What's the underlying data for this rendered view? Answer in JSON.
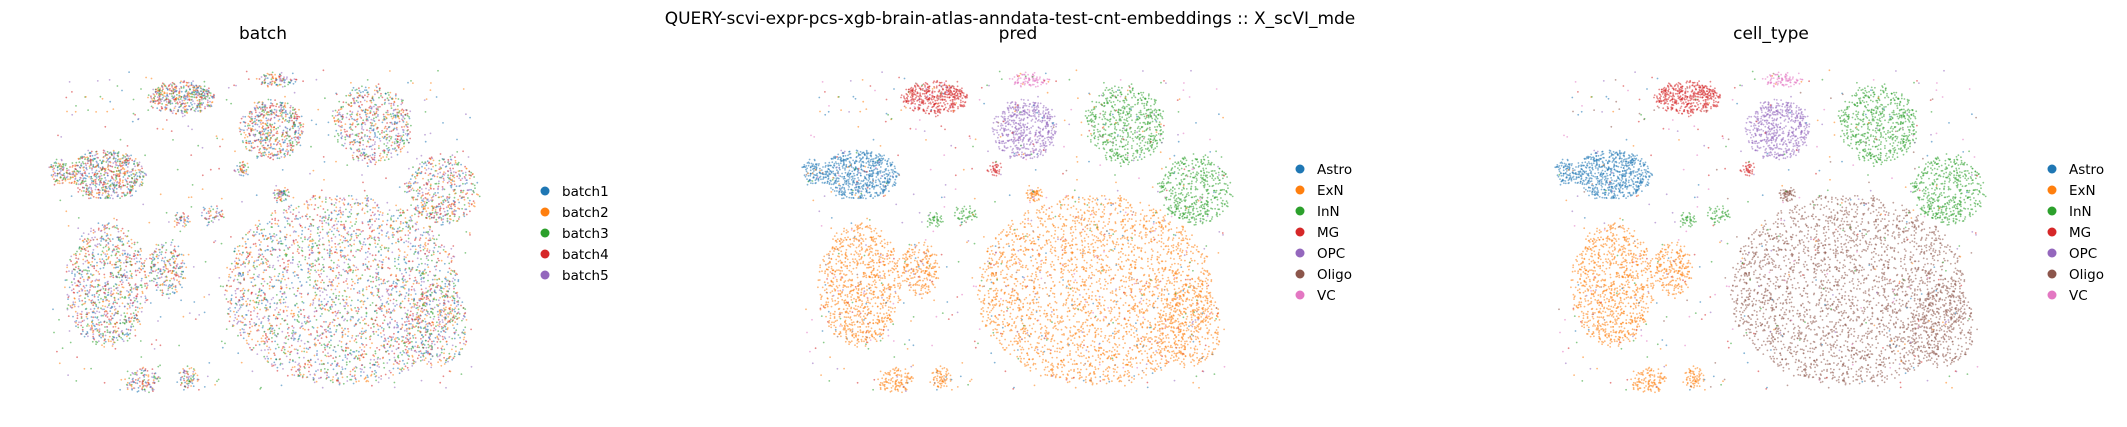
{
  "suptitle": "QUERY-scvi-expr-pcs-xgb-brain-atlas-anndata-test-cnt-embeddings :: X_scVI_mde",
  "chart_data": [
    {
      "type": "scatter",
      "title": "batch",
      "legend_position": "right",
      "grid": false,
      "axes_visible": false,
      "series": [
        {
          "name": "batch1",
          "color": "#1f77b4"
        },
        {
          "name": "batch2",
          "color": "#ff7f0e"
        },
        {
          "name": "batch3",
          "color": "#2ca02c"
        },
        {
          "name": "batch4",
          "color": "#d62728"
        },
        {
          "name": "batch5",
          "color": "#9467bd"
        }
      ]
    },
    {
      "type": "scatter",
      "title": "pred",
      "legend_position": "right",
      "grid": false,
      "axes_visible": false,
      "series": [
        {
          "name": "Astro",
          "color": "#1f77b4"
        },
        {
          "name": "ExN",
          "color": "#ff7f0e"
        },
        {
          "name": "InN",
          "color": "#2ca02c"
        },
        {
          "name": "MG",
          "color": "#d62728"
        },
        {
          "name": "OPC",
          "color": "#9467bd"
        },
        {
          "name": "Oligo",
          "color": "#8c564b"
        },
        {
          "name": "VC",
          "color": "#e377c2"
        }
      ]
    },
    {
      "type": "scatter",
      "title": "cell_type",
      "legend_position": "right",
      "grid": false,
      "axes_visible": false,
      "series": [
        {
          "name": "Astro",
          "color": "#1f77b4"
        },
        {
          "name": "ExN",
          "color": "#ff7f0e"
        },
        {
          "name": "InN",
          "color": "#2ca02c"
        },
        {
          "name": "MG",
          "color": "#d62728"
        },
        {
          "name": "OPC",
          "color": "#9467bd"
        },
        {
          "name": "Oligo",
          "color": "#8c564b"
        },
        {
          "name": "VC",
          "color": "#e377c2"
        }
      ]
    }
  ]
}
